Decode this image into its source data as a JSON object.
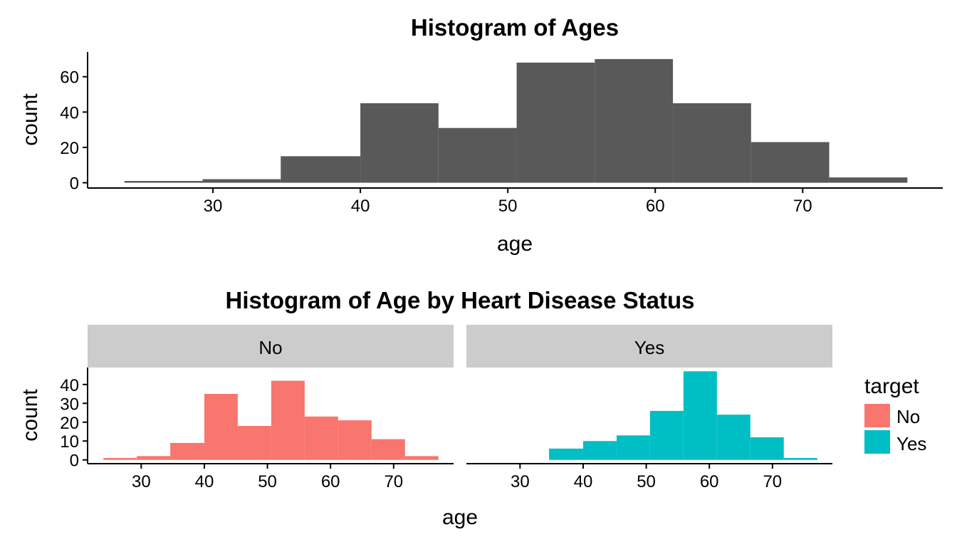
{
  "chart_data": [
    {
      "type": "bar",
      "title": "Histogram of Ages",
      "xlabel": "age",
      "ylabel": "count",
      "xlim": [
        21.5,
        79.5
      ],
      "ylim": [
        -3,
        74
      ],
      "xticks": [
        30,
        40,
        50,
        60,
        70
      ],
      "yticks": [
        0,
        20,
        40,
        60
      ],
      "bins": [
        {
          "x0": 24.0,
          "x1": 29.3,
          "count": 1
        },
        {
          "x0": 29.3,
          "x1": 34.6,
          "count": 2
        },
        {
          "x0": 34.6,
          "x1": 40.0,
          "count": 15
        },
        {
          "x0": 40.0,
          "x1": 45.3,
          "count": 45
        },
        {
          "x0": 45.3,
          "x1": 50.6,
          "count": 31
        },
        {
          "x0": 50.6,
          "x1": 55.9,
          "count": 68
        },
        {
          "x0": 55.9,
          "x1": 61.2,
          "count": 70
        },
        {
          "x0": 61.2,
          "x1": 66.5,
          "count": 45
        },
        {
          "x0": 66.5,
          "x1": 71.8,
          "count": 23
        },
        {
          "x0": 71.8,
          "x1": 77.1,
          "count": 3
        }
      ],
      "color": "#595959",
      "grid": false
    },
    {
      "type": "bar",
      "title": "Histogram of Age by Heart Disease Status",
      "xlabel": "age",
      "ylabel": "count",
      "xlim": [
        21.5,
        79.5
      ],
      "ylim": [
        -2,
        49
      ],
      "xticks": [
        30,
        40,
        50,
        60,
        70
      ],
      "yticks": [
        0,
        10,
        20,
        30,
        40
      ],
      "grid": false,
      "legend": {
        "title": "target",
        "position": "right",
        "entries": [
          {
            "label": "No",
            "color": "#F8766D"
          },
          {
            "label": "Yes",
            "color": "#00BFC4"
          }
        ]
      },
      "facets": [
        {
          "strip": "No",
          "color": "#F8766D",
          "bins": [
            {
              "x0": 24.0,
              "x1": 29.3,
              "count": 1
            },
            {
              "x0": 29.3,
              "x1": 34.6,
              "count": 2
            },
            {
              "x0": 34.6,
              "x1": 40.0,
              "count": 9
            },
            {
              "x0": 40.0,
              "x1": 45.3,
              "count": 35
            },
            {
              "x0": 45.3,
              "x1": 50.6,
              "count": 18
            },
            {
              "x0": 50.6,
              "x1": 55.9,
              "count": 42
            },
            {
              "x0": 55.9,
              "x1": 61.2,
              "count": 23
            },
            {
              "x0": 61.2,
              "x1": 66.5,
              "count": 21
            },
            {
              "x0": 66.5,
              "x1": 71.8,
              "count": 11
            },
            {
              "x0": 71.8,
              "x1": 77.1,
              "count": 2
            }
          ]
        },
        {
          "strip": "Yes",
          "color": "#00BFC4",
          "bins": [
            {
              "x0": 24.0,
              "x1": 29.3,
              "count": 0
            },
            {
              "x0": 29.3,
              "x1": 34.6,
              "count": 0
            },
            {
              "x0": 34.6,
              "x1": 40.0,
              "count": 6
            },
            {
              "x0": 40.0,
              "x1": 45.3,
              "count": 10
            },
            {
              "x0": 45.3,
              "x1": 50.6,
              "count": 13
            },
            {
              "x0": 50.6,
              "x1": 55.9,
              "count": 26
            },
            {
              "x0": 55.9,
              "x1": 61.2,
              "count": 47
            },
            {
              "x0": 61.2,
              "x1": 66.5,
              "count": 24
            },
            {
              "x0": 66.5,
              "x1": 71.8,
              "count": 12
            },
            {
              "x0": 71.8,
              "x1": 77.1,
              "count": 1
            }
          ]
        }
      ]
    }
  ]
}
